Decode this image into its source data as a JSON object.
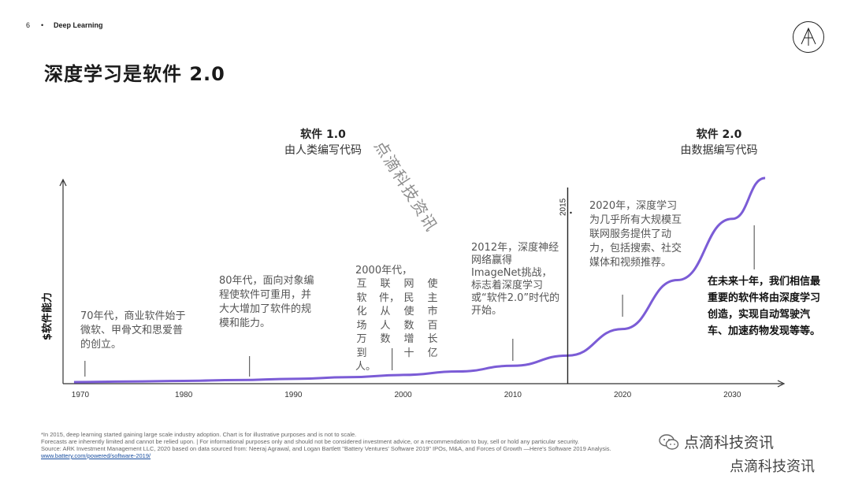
{
  "header": {
    "page_number": "6",
    "separator": "•",
    "section": "Deep Learning"
  },
  "title": "深度学习是软件 2.0",
  "colors": {
    "curve": "#7b5cd6",
    "axis": "#333333",
    "marker": "#222222",
    "link": "#1a4fa0"
  },
  "eras": {
    "software1": {
      "title": "软件 1.0",
      "subtitle": "由人类编写代码"
    },
    "software2": {
      "title": "软件 2.0",
      "subtitle": "由数据编写代码"
    }
  },
  "annotations": {
    "a1970": "70年代，商业软件始于微软、甲骨文和思爱普的创立。",
    "a1980": "80年代，面向对象编程使软件可重用，并大大增加了软件的规模和能力。",
    "a2000_head": "2000年代，",
    "a2000_cols": [
      "互软化场万到人。",
      "联件，从人数",
      "网民使数增十",
      "使主市百长亿"
    ],
    "a2012": "2012年，深度神经网络赢得ImageNet挑战，标志着深度学习或“软件2.0”时代的开始。",
    "a2020": "2020年，深度学习为几乎所有大规模互联网服务提供了动力，包括搜索、社交媒体和视频推荐。",
    "future": "在未来十年，我们相信最重要的软件将由深度学习创造，实现自动驾驶汽车、加速药物发现等等。"
  },
  "chart_data": {
    "type": "line",
    "title": "深度学习是软件 2.0",
    "xlabel": "",
    "ylabel": "$软件能力",
    "xlim": [
      1969,
      2034
    ],
    "ylim": [
      0,
      100
    ],
    "x_ticks": [
      "1970",
      "1980",
      "1990",
      "2000",
      "2010",
      "2020",
      "2030"
    ],
    "x_tick_values": [
      1970,
      1980,
      1990,
      2000,
      2010,
      2020,
      2030
    ],
    "marker": {
      "x": 2015,
      "label": "2015"
    },
    "series": [
      {
        "name": "软件能力",
        "x": [
          1970,
          1975,
          1980,
          1985,
          1990,
          1995,
          2000,
          2005,
          2010,
          2015,
          2020,
          2025,
          2030,
          2033
        ],
        "y": [
          0,
          0.3,
          0.6,
          1,
          1.6,
          2.4,
          3.5,
          5.2,
          8,
          13,
          26,
          50,
          80,
          100
        ]
      }
    ],
    "ticks_note": "Annotation leader lines at 1971, 1986, 1999, 2010, 2020, 2032"
  },
  "footnotes": {
    "line1": "*In 2015, deep learning started gaining large scale industry adoption. Chart is for illustrative purposes and is not to scale.",
    "line2": "Forecasts are inherently limited and cannot be relied upon. | For informational purposes only and should not be considered investment advice, or a recommendation to buy, sell or hold any particular security.",
    "line3": "Source: ARK Investment Management LLC, 2020 based on data sourced from: Neeraj Agrawal, and Logan Bartlett \"Battery Ventures' Software 2019\" IPOs, M&A, and Forces of Growth —Here's Software 2019 Analysis.",
    "link": "www.battery.com/powered/software-2019/"
  },
  "watermarks": {
    "diagonal": "点滴科技资讯",
    "wechat": "点滴科技资讯",
    "bottom": "点滴科技资讯"
  }
}
